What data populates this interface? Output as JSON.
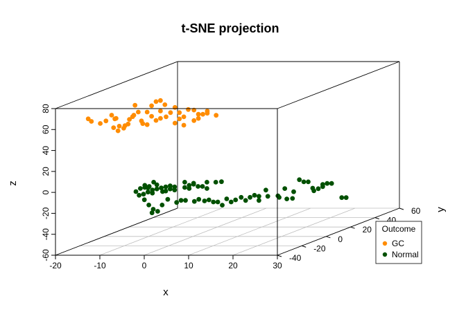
{
  "chart_data": {
    "type": "scatter3d",
    "title": "t-SNE projection",
    "xlabel": "x",
    "ylabel": "y",
    "zlabel": "z",
    "xlim": [
      -20,
      30
    ],
    "ylim": [
      -40,
      60
    ],
    "zlim": [
      -60,
      80
    ],
    "x_ticks": [
      "-20",
      "-10",
      "0",
      "10",
      "20",
      "30"
    ],
    "y_ticks": [
      "-40",
      "-20",
      "0",
      "20",
      "40",
      "60"
    ],
    "z_ticks": [
      "-60",
      "-40",
      "-20",
      "0",
      "20",
      "40",
      "60",
      "80"
    ],
    "grid": "xy-floor",
    "legend": {
      "title": "Outcome",
      "position": "right",
      "entries": [
        {
          "label": "GC",
          "color": "#ff8c00"
        },
        {
          "label": "Normal",
          "color": "#005000"
        }
      ]
    },
    "series": [
      {
        "name": "GC",
        "color": "#ff8c00",
        "points": [
          [
            -14,
            -35,
            68
          ],
          [
            -13,
            -36,
            66
          ],
          [
            -11,
            -36,
            64
          ],
          [
            -10,
            -35,
            66
          ],
          [
            -9,
            -34,
            71
          ],
          [
            -8,
            -35,
            68
          ],
          [
            -8,
            -36,
            60
          ],
          [
            -7,
            -36,
            57
          ],
          [
            -7,
            -35,
            61
          ],
          [
            -6,
            -35,
            59
          ],
          [
            -6,
            -34,
            61
          ],
          [
            -5,
            -35,
            63
          ],
          [
            -5,
            -34,
            67
          ],
          [
            -4,
            -35,
            70
          ],
          [
            -4,
            -34,
            71
          ],
          [
            -3,
            -34,
            74
          ],
          [
            -2,
            -35,
            66
          ],
          [
            -2,
            -34,
            63
          ],
          [
            -1,
            -34,
            62
          ],
          [
            -1,
            -34,
            74
          ],
          [
            0,
            -34,
            80
          ],
          [
            1,
            -34,
            84
          ],
          [
            1,
            -34,
            66
          ],
          [
            2,
            -34,
            68
          ],
          [
            2,
            -34,
            75
          ],
          [
            2,
            -34,
            85
          ],
          [
            3,
            -34,
            81
          ],
          [
            3,
            -33,
            69
          ],
          [
            4,
            -33,
            73
          ],
          [
            5,
            -33,
            63
          ],
          [
            5,
            -33,
            78
          ],
          [
            6,
            -33,
            73
          ],
          [
            6,
            -33,
            67
          ],
          [
            7,
            -33,
            61
          ],
          [
            7,
            -33,
            69
          ],
          [
            8,
            -33,
            76
          ],
          [
            9,
            -32,
            65
          ],
          [
            9,
            -32,
            75
          ],
          [
            10,
            -32,
            67
          ],
          [
            10,
            -32,
            71
          ],
          [
            11,
            -32,
            71
          ],
          [
            12,
            -32,
            72
          ],
          [
            12,
            -32,
            74
          ],
          [
            14,
            -32,
            70
          ],
          [
            -4,
            -33,
            80
          ],
          [
            -8,
            -34,
            68
          ],
          [
            0,
            -34,
            70
          ]
        ]
      },
      {
        "name": "Normal",
        "color": "#005000",
        "points": [
          [
            -6,
            -25,
            -6
          ],
          [
            -5,
            -25,
            -3
          ],
          [
            -5,
            -26,
            -9
          ],
          [
            -4,
            -26,
            -8
          ],
          [
            -4,
            -25,
            -2
          ],
          [
            -4,
            -25,
            0
          ],
          [
            -3,
            -26,
            -6
          ],
          [
            -3,
            -26,
            -2
          ],
          [
            -3,
            -25,
            -1
          ],
          [
            -2,
            -26,
            -7
          ],
          [
            -2,
            -26,
            -4
          ],
          [
            -2,
            -25,
            3
          ],
          [
            -1,
            -26,
            -3
          ],
          [
            -1,
            -26,
            1
          ],
          [
            0,
            -26,
            -2
          ],
          [
            0,
            -25,
            -6
          ],
          [
            1,
            -26,
            -1
          ],
          [
            1,
            -26,
            -5
          ],
          [
            2,
            -26,
            -3
          ],
          [
            2,
            -26,
            0
          ],
          [
            3,
            -26,
            -1
          ],
          [
            3,
            -26,
            -4
          ],
          [
            5,
            -25,
            3
          ],
          [
            5,
            -25,
            -2
          ],
          [
            6,
            -25,
            0
          ],
          [
            6,
            -25,
            -3
          ],
          [
            7,
            -25,
            1
          ],
          [
            7,
            -25,
            2
          ],
          [
            8,
            -25,
            -1
          ],
          [
            9,
            -25,
            -1
          ],
          [
            10,
            -25,
            -3
          ],
          [
            10,
            -25,
            3
          ],
          [
            12,
            -25,
            3
          ],
          [
            13,
            -24,
            3
          ],
          [
            -3,
            -29,
            -12
          ],
          [
            -2,
            -29,
            -17
          ],
          [
            -1,
            -29,
            -21
          ],
          [
            0,
            -29,
            -23
          ],
          [
            -1,
            -30,
            -24
          ],
          [
            1,
            -29,
            -17
          ],
          [
            2,
            -28,
            -12
          ],
          [
            4,
            -28,
            -15
          ],
          [
            5,
            -28,
            -13
          ],
          [
            6,
            -28,
            -13
          ],
          [
            8,
            -28,
            -14
          ],
          [
            9,
            -28,
            -12
          ],
          [
            10,
            -27,
            -14
          ],
          [
            11,
            -27,
            -13
          ],
          [
            12,
            -27,
            -15
          ],
          [
            13,
            -27,
            -15
          ],
          [
            14,
            -27,
            -18
          ],
          [
            15,
            -27,
            -12
          ],
          [
            16,
            -27,
            -15
          ],
          [
            17,
            -27,
            -13
          ],
          [
            18,
            -26,
            -11
          ],
          [
            19,
            -26,
            -14
          ],
          [
            20,
            -26,
            -11
          ],
          [
            21,
            -26,
            -9
          ],
          [
            22,
            -26,
            -14
          ],
          [
            22,
            -26,
            -10
          ],
          [
            24,
            -26,
            -10
          ],
          [
            26,
            -25,
            -10
          ],
          [
            28,
            -25,
            -13
          ],
          [
            29,
            -24,
            -13
          ],
          [
            26,
            -24,
            -12
          ],
          [
            23,
            -24,
            -5
          ],
          [
            27,
            -23,
            -4
          ],
          [
            29,
            -23,
            -7
          ],
          [
            30,
            -22,
            4
          ],
          [
            31,
            -22,
            2
          ],
          [
            32,
            -22,
            2
          ],
          [
            33,
            -22,
            -4
          ],
          [
            33,
            -21,
            -7
          ],
          [
            34,
            -21,
            -5
          ],
          [
            35,
            -21,
            -1
          ],
          [
            35,
            -21,
            -3
          ],
          [
            36,
            -21,
            0
          ],
          [
            37,
            -21,
            0
          ],
          [
            39,
            -20,
            -14
          ],
          [
            40,
            -20,
            -14
          ]
        ]
      }
    ]
  }
}
